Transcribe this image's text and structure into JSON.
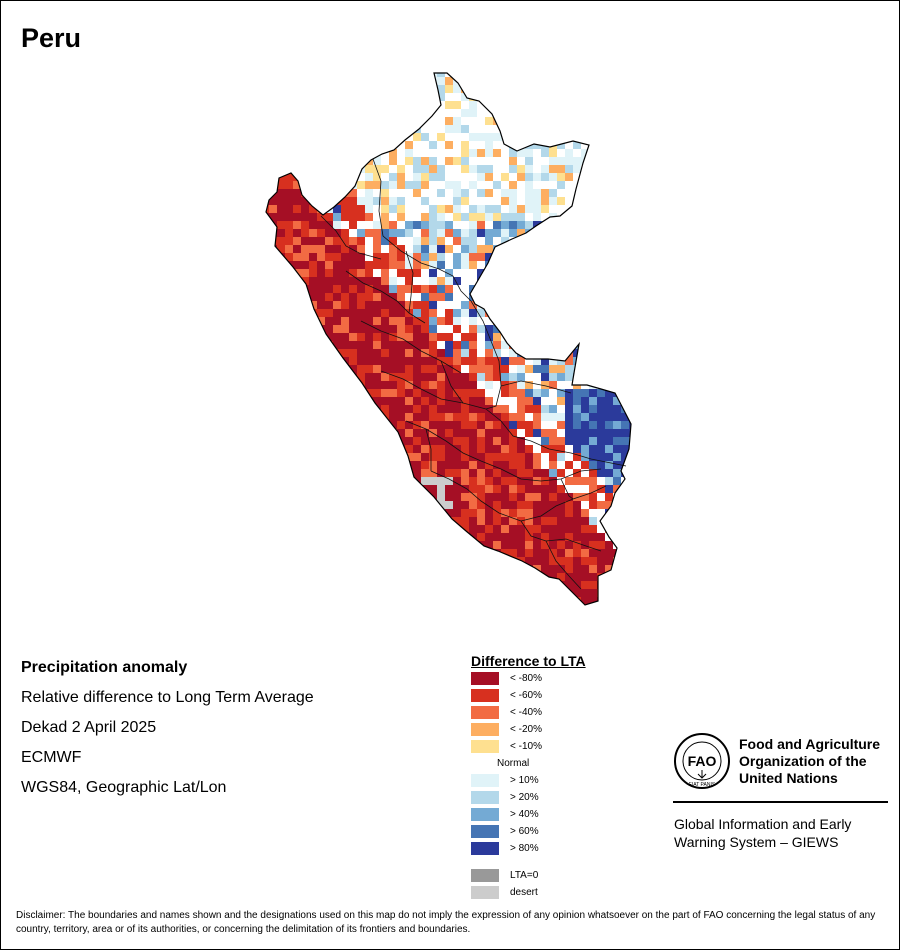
{
  "title": "Peru",
  "info": {
    "line1": "Precipitation anomaly",
    "line2": "Relative difference to Long Term Average",
    "line3": "Dekad 2 April 2025",
    "line4": "ECMWF",
    "line5": "WGS84, Geographic Lat/Lon"
  },
  "legend": {
    "title": "Difference to LTA",
    "items": [
      {
        "label": "< -80%",
        "color": "#a50f25"
      },
      {
        "label": "< -60%",
        "color": "#d7301f"
      },
      {
        "label": "< -40%",
        "color": "#f26b43"
      },
      {
        "label": "< -20%",
        "color": "#fdae61"
      },
      {
        "label": "< -10%",
        "color": "#fee090"
      },
      {
        "label": "Normal",
        "color": "#ffffff"
      },
      {
        "label": "> 10%",
        "color": "#e0f3f8"
      },
      {
        "label": "> 20%",
        "color": "#b3d8ea"
      },
      {
        "label": "> 40%",
        "color": "#74aad4"
      },
      {
        "label": "> 60%",
        "color": "#4575b4"
      },
      {
        "label": "> 80%",
        "color": "#2b3a9b"
      }
    ],
    "lta0": {
      "label": "LTA=0",
      "color": "#999999"
    },
    "desert": {
      "label": "desert",
      "color": "#cccccc"
    }
  },
  "org": {
    "name_line1": "Food and Agriculture",
    "name_line2": "Organization of the",
    "name_line3": "United Nations",
    "logo_text": "FAO",
    "logo_motto": "FIAT PANIS",
    "giews_line1": "Global Information and Early",
    "giews_line2": "Warning System – GIEWS"
  },
  "disclaimer": "Disclaimer: The boundaries and names shown and the designations used on this map do not imply the expression of any opinion whatsoever on the part of FAO concerning the legal status of any country, territory, area or of its authorities, or concerning the delimitation of its frontiers and boundaries."
}
